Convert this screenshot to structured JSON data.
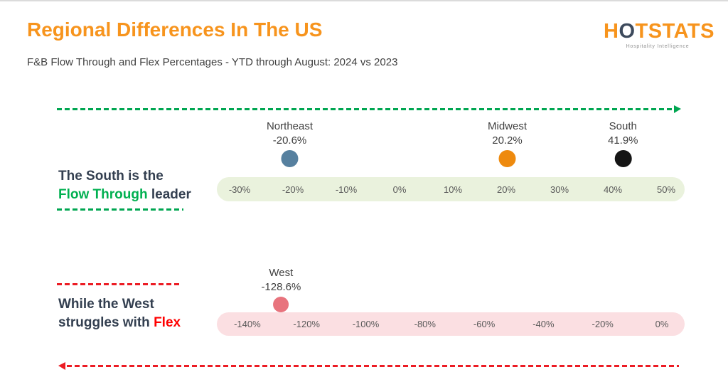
{
  "header": {
    "title": "Regional Differences In The US",
    "subtitle": "F&B Flow Through and Flex Percentages - YTD through August: 2024 vs 2023"
  },
  "logo": {
    "text_h": "H",
    "text_o": "O",
    "text_rest": "TSTATS",
    "tagline": "Hospitality Intelligence"
  },
  "colors": {
    "accent_orange": "#F7941D",
    "highlight_green": "#00B050",
    "dash_green": "#00A651",
    "highlight_red": "#FF0000",
    "dash_red": "#EC1C24",
    "bar_green": "#EAF2DD",
    "bar_pink": "#FBDFE2",
    "dark_text": "#333F50",
    "tick_text": "#595959"
  },
  "chart_data": [
    {
      "type": "scatter",
      "name": "flow_through",
      "annotation": {
        "line1": "The South is the",
        "line2_highlight": "Flow Through",
        "line2_rest": " leader"
      },
      "xlim": [
        -34,
        53
      ],
      "grid": false,
      "axis_ticks": [
        {
          "value": -30,
          "label": "-30%"
        },
        {
          "value": -20,
          "label": "-20%"
        },
        {
          "value": -10,
          "label": "-10%"
        },
        {
          "value": 0,
          "label": "0%"
        },
        {
          "value": 10,
          "label": "10%"
        },
        {
          "value": 20,
          "label": "20%"
        },
        {
          "value": 30,
          "label": "30%"
        },
        {
          "value": 40,
          "label": "40%"
        },
        {
          "value": 50,
          "label": "50%"
        }
      ],
      "points": [
        {
          "region": "Northeast",
          "value": -20.6,
          "value_label": "-20.6%",
          "color": "#56809F"
        },
        {
          "region": "Midwest",
          "value": 20.2,
          "value_label": "20.2%",
          "color": "#EE8A0E"
        },
        {
          "region": "South",
          "value": 41.9,
          "value_label": "41.9%",
          "color": "#151515"
        }
      ]
    },
    {
      "type": "scatter",
      "name": "flex",
      "annotation": {
        "line1": "While the West",
        "line2_rest": "struggles with ",
        "line2_highlight": "Flex"
      },
      "xlim": [
        -150,
        6
      ],
      "grid": false,
      "axis_ticks": [
        {
          "value": -140,
          "label": "-140%"
        },
        {
          "value": -120,
          "label": "-120%"
        },
        {
          "value": -100,
          "label": "-100%"
        },
        {
          "value": -80,
          "label": "-80%"
        },
        {
          "value": -60,
          "label": "-60%"
        },
        {
          "value": -40,
          "label": "-40%"
        },
        {
          "value": -20,
          "label": "-20%"
        },
        {
          "value": 0,
          "label": "0%"
        }
      ],
      "points": [
        {
          "region": "West",
          "value": -128.6,
          "value_label": "-128.6%",
          "color": "#E8737D"
        }
      ]
    }
  ]
}
